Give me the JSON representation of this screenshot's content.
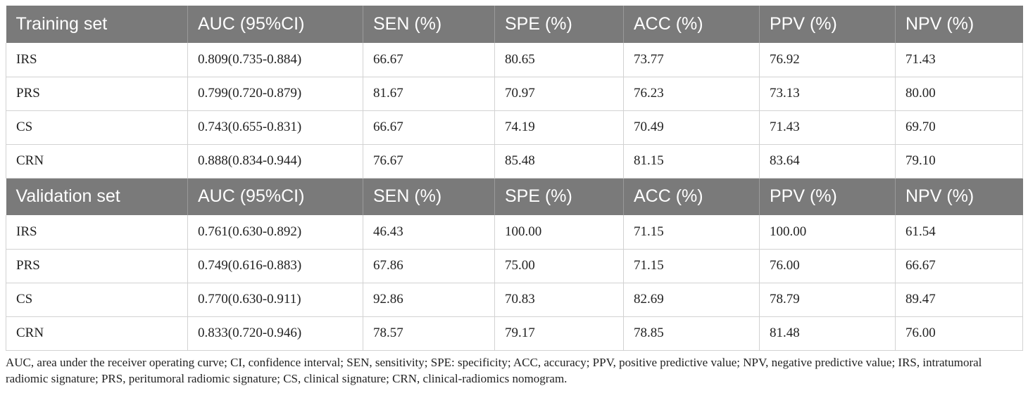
{
  "training": {
    "headers": [
      "Training set",
      "AUC (95%CI)",
      "SEN (%)",
      "SPE (%)",
      "ACC (%)",
      "PPV (%)",
      "NPV (%)"
    ],
    "rows": [
      [
        "IRS",
        "0.809(0.735-0.884)",
        "66.67",
        "80.65",
        "73.77",
        "76.92",
        "71.43"
      ],
      [
        "PRS",
        "0.799(0.720-0.879)",
        "81.67",
        "70.97",
        "76.23",
        "73.13",
        "80.00"
      ],
      [
        "CS",
        "0.743(0.655-0.831)",
        "66.67",
        "74.19",
        "70.49",
        "71.43",
        "69.70"
      ],
      [
        "CRN",
        "0.888(0.834-0.944)",
        "76.67",
        "85.48",
        "81.15",
        "83.64",
        "79.10"
      ]
    ]
  },
  "validation": {
    "headers": [
      "Validation set",
      "AUC (95%CI)",
      "SEN (%)",
      "SPE (%)",
      "ACC (%)",
      "PPV (%)",
      "NPV (%)"
    ],
    "rows": [
      [
        "IRS",
        "0.761(0.630-0.892)",
        "46.43",
        "100.00",
        "71.15",
        "100.00",
        "61.54"
      ],
      [
        "PRS",
        "0.749(0.616-0.883)",
        "67.86",
        "75.00",
        "71.15",
        "76.00",
        "66.67"
      ],
      [
        "CS",
        "0.770(0.630-0.911)",
        "92.86",
        "70.83",
        "82.69",
        "78.79",
        "89.47"
      ],
      [
        "CRN",
        "0.833(0.720-0.946)",
        "78.57",
        "79.17",
        "78.85",
        "81.48",
        "76.00"
      ]
    ]
  },
  "footnote": "AUC, area under the receiver operating curve; CI, confidence interval; SEN, sensitivity; SPE: specificity; ACC, accuracy; PPV, positive predictive value; NPV, negative predictive value; IRS, intratumoral radiomic signature; PRS, peritumoral radiomic signature; CS, clinical signature; CRN, clinical-radiomics nomogram."
}
